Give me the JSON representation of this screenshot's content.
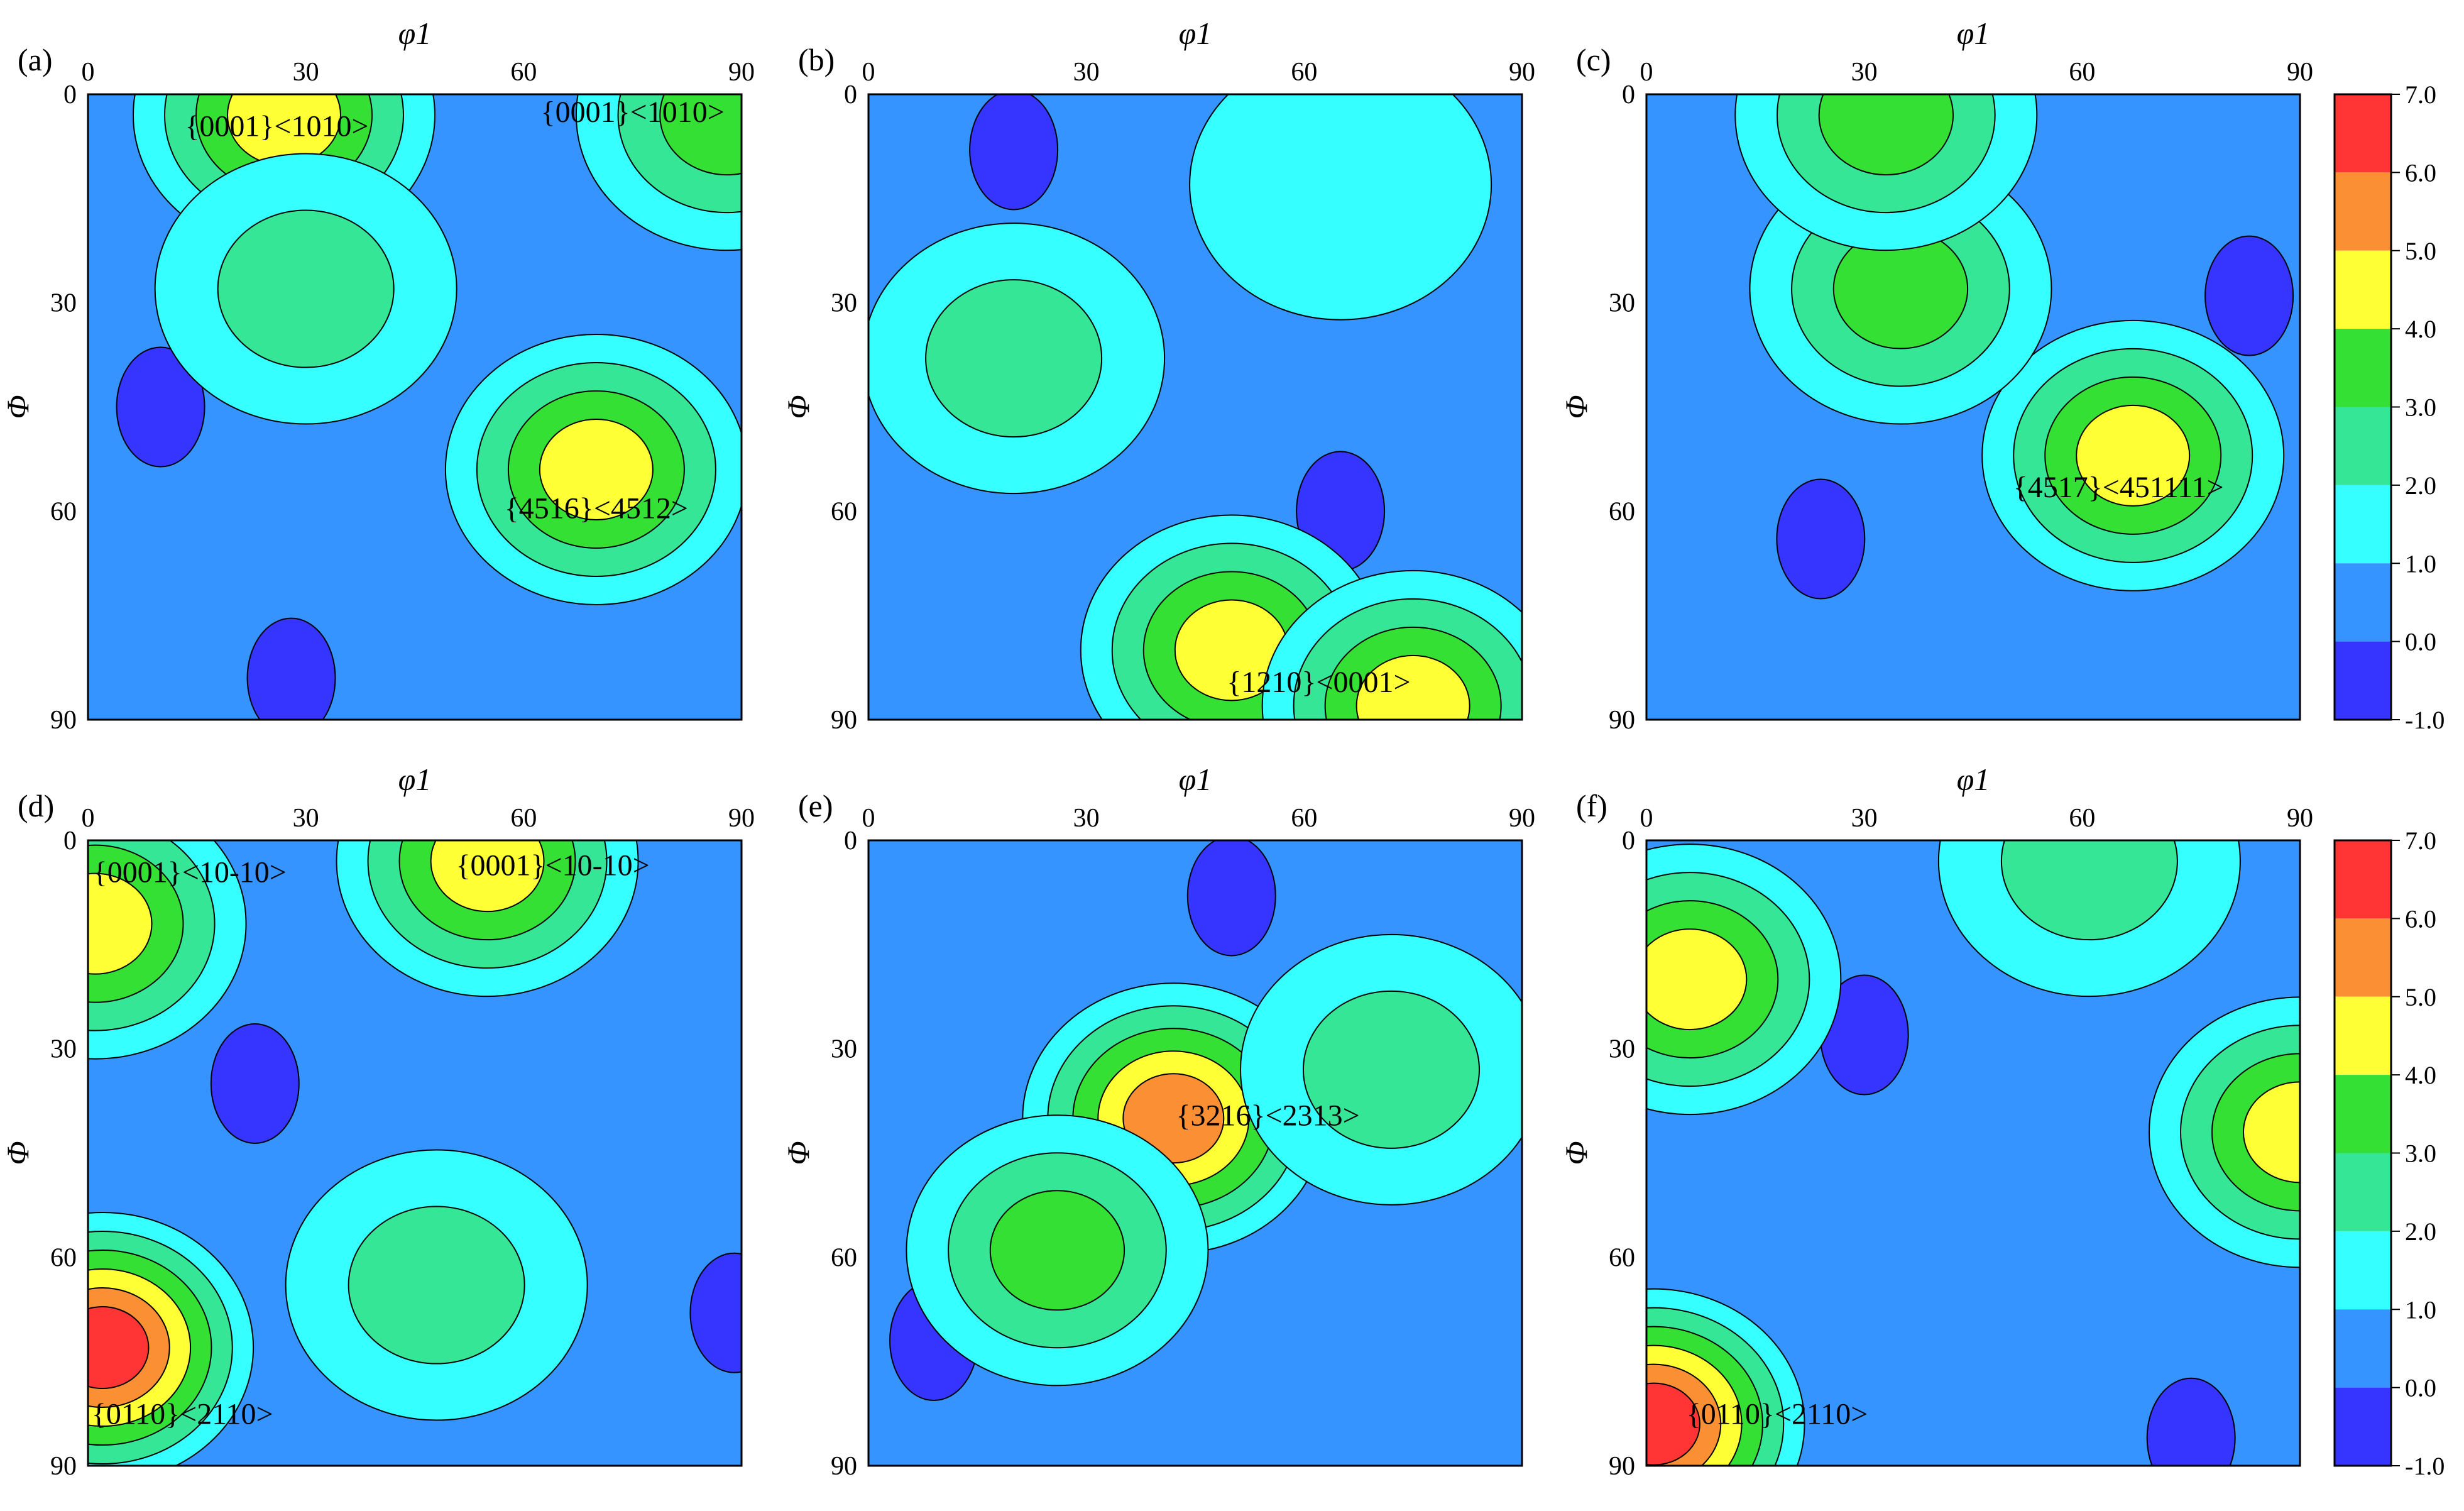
{
  "chart_data": [
    {
      "type": "heatmap",
      "panel": "(a)",
      "xlabel": "φ1",
      "ylabel": "Φ",
      "xticks": [
        "0",
        "30",
        "60",
        "90"
      ],
      "yticks": [
        "0",
        "30",
        "60",
        "90"
      ],
      "xlim": [
        0,
        90
      ],
      "ylim": [
        0,
        90
      ],
      "peaks": [
        {
          "phi1": 27,
          "Phi": 3,
          "level": 4.0
        },
        {
          "phi1": 88,
          "Phi": 3,
          "level": 3.0
        },
        {
          "phi1": 70,
          "Phi": 54,
          "level": 4.0
        },
        {
          "phi1": 30,
          "Phi": 28,
          "level": 2.0
        }
      ],
      "lows": [
        {
          "phi1": 10,
          "Phi": 45,
          "level": -1.0
        },
        {
          "phi1": 28,
          "Phi": 84,
          "level": -1.0
        }
      ],
      "annotations": [
        {
          "text": "{0001}<1010>",
          "phi1": 26,
          "Phi": 6
        },
        {
          "text": "{0001}<1010>",
          "phi1": 75,
          "Phi": 4
        },
        {
          "text": "{4516}<4512>",
          "phi1": 70,
          "Phi": 61
        }
      ]
    },
    {
      "type": "heatmap",
      "panel": "(b)",
      "xlabel": "φ1",
      "ylabel": "Φ",
      "xticks": [
        "0",
        "30",
        "60",
        "90"
      ],
      "yticks": [
        "0",
        "30",
        "60",
        "90"
      ],
      "xlim": [
        0,
        90
      ],
      "ylim": [
        0,
        90
      ],
      "peaks": [
        {
          "phi1": 50,
          "Phi": 80,
          "level": 4.0
        },
        {
          "phi1": 75,
          "Phi": 88,
          "level": 4.0
        },
        {
          "phi1": 20,
          "Phi": 38,
          "level": 2.0
        },
        {
          "phi1": 65,
          "Phi": 13,
          "level": 1.0
        }
      ],
      "lows": [
        {
          "phi1": 20,
          "Phi": 8,
          "level": -1.0
        },
        {
          "phi1": 65,
          "Phi": 60,
          "level": -1.0
        }
      ],
      "annotations": [
        {
          "text": "{1210}<0001>",
          "phi1": 62,
          "Phi": 86
        }
      ]
    },
    {
      "type": "heatmap",
      "panel": "(c)",
      "xlabel": "φ1",
      "ylabel": "Φ",
      "xticks": [
        "0",
        "30",
        "60",
        "90"
      ],
      "yticks": [
        "0",
        "30",
        "60",
        "90"
      ],
      "xlim": [
        0,
        90
      ],
      "ylim": [
        0,
        90
      ],
      "peaks": [
        {
          "phi1": 67,
          "Phi": 52,
          "level": 4.0
        },
        {
          "phi1": 35,
          "Phi": 28,
          "level": 3.0
        },
        {
          "phi1": 33,
          "Phi": 3,
          "level": 3.0
        }
      ],
      "lows": [
        {
          "phi1": 24,
          "Phi": 64,
          "level": -1.0
        },
        {
          "phi1": 83,
          "Phi": 29,
          "level": -1.0
        }
      ],
      "annotations": [
        {
          "text": "{4517}<451111>",
          "phi1": 65,
          "Phi": 58
        }
      ]
    },
    {
      "type": "heatmap",
      "panel": "(d)",
      "xlabel": "φ1",
      "ylabel": "Φ",
      "xticks": [
        "0",
        "30",
        "60",
        "90"
      ],
      "yticks": [
        "0",
        "30",
        "60",
        "90"
      ],
      "xlim": [
        0,
        90
      ],
      "ylim": [
        0,
        90
      ],
      "peaks": [
        {
          "phi1": 2,
          "Phi": 73,
          "level": 6.0
        },
        {
          "phi1": 1,
          "Phi": 12,
          "level": 4.0
        },
        {
          "phi1": 55,
          "Phi": 3,
          "level": 4.0
        },
        {
          "phi1": 48,
          "Phi": 64,
          "level": 2.0
        }
      ],
      "lows": [
        {
          "phi1": 23,
          "Phi": 35,
          "level": -1.0
        },
        {
          "phi1": 89,
          "Phi": 68,
          "level": -1.0
        }
      ],
      "annotations": [
        {
          "text": "{0001}<10-10>",
          "phi1": 14,
          "Phi": 6
        },
        {
          "text": "{0001}<10-10>",
          "phi1": 64,
          "Phi": 5
        },
        {
          "text": "{0110}<2110>",
          "phi1": 13,
          "Phi": 84
        }
      ]
    },
    {
      "type": "heatmap",
      "panel": "(e)",
      "xlabel": "φ1",
      "ylabel": "Φ",
      "xticks": [
        "0",
        "30",
        "60",
        "90"
      ],
      "yticks": [
        "0",
        "30",
        "60",
        "90"
      ],
      "xlim": [
        0,
        90
      ],
      "ylim": [
        0,
        90
      ],
      "peaks": [
        {
          "phi1": 42,
          "Phi": 40,
          "level": 5.0
        },
        {
          "phi1": 26,
          "Phi": 59,
          "level": 3.0
        },
        {
          "phi1": 72,
          "Phi": 33,
          "level": 2.0
        }
      ],
      "lows": [
        {
          "phi1": 50,
          "Phi": 8,
          "level": -1.0
        },
        {
          "phi1": 9,
          "Phi": 72,
          "level": -1.0
        }
      ],
      "annotations": [
        {
          "text": "{3216}<2313>",
          "phi1": 55,
          "Phi": 41
        }
      ]
    },
    {
      "type": "heatmap",
      "panel": "(f)",
      "xlabel": "φ1",
      "ylabel": "Φ",
      "xticks": [
        "0",
        "30",
        "60",
        "90"
      ],
      "yticks": [
        "0",
        "30",
        "60",
        "90"
      ],
      "xlim": [
        0,
        90
      ],
      "ylim": [
        0,
        90
      ],
      "peaks": [
        {
          "phi1": 1,
          "Phi": 84,
          "level": 6.0
        },
        {
          "phi1": 6,
          "Phi": 20,
          "level": 4.0
        },
        {
          "phi1": 90,
          "Phi": 42,
          "level": 4.0
        },
        {
          "phi1": 61,
          "Phi": 3,
          "level": 2.0
        }
      ],
      "lows": [
        {
          "phi1": 75,
          "Phi": 86,
          "level": -1.0
        },
        {
          "phi1": 30,
          "Phi": 28,
          "level": -1.0
        }
      ],
      "annotations": [
        {
          "text": "{0110}<2110>",
          "phi1": 18,
          "Phi": 84
        }
      ]
    }
  ],
  "colorbar": {
    "ticks": [
      "7.0",
      "6.0",
      "5.0",
      "4.0",
      "3.0",
      "2.0",
      "1.0",
      "0.0",
      "-1.0"
    ],
    "colors": [
      "#ff3535",
      "#fb8f33",
      "#ffff35",
      "#35e035",
      "#35e696",
      "#35ffff",
      "#3594ff",
      "#3535ff"
    ]
  }
}
